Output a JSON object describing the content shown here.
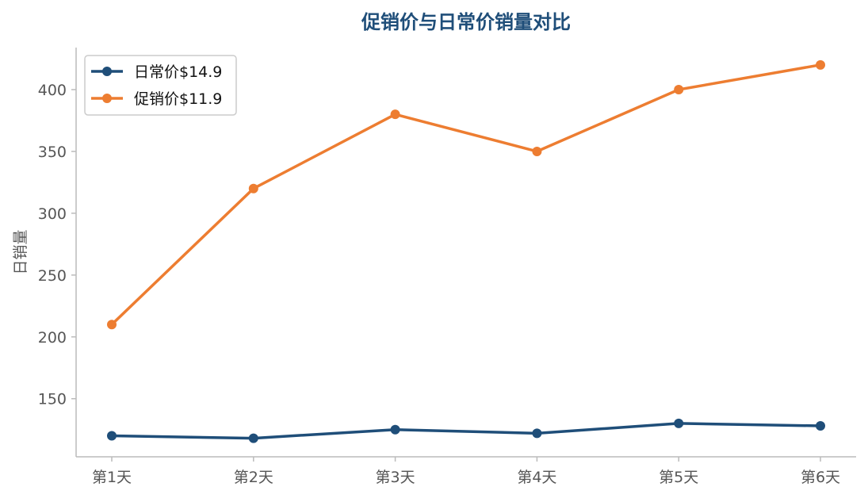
{
  "chart_data": {
    "type": "line",
    "title": "促销价与日常价销量对比",
    "xlabel": "",
    "ylabel": "日销量",
    "categories": [
      "第1天",
      "第2天",
      "第3天",
      "第4天",
      "第5天",
      "第6天"
    ],
    "ylim": [
      103,
      434
    ],
    "yticks": [
      150,
      200,
      250,
      300,
      350,
      400
    ],
    "grid": false,
    "legend_position": "top-left",
    "series": [
      {
        "name": "日常价$14.9",
        "color": "#1f4e79",
        "values": [
          120,
          118,
          125,
          122,
          130,
          128
        ]
      },
      {
        "name": "促销价$11.9",
        "color": "#ed7d31",
        "values": [
          210,
          320,
          380,
          350,
          400,
          420
        ]
      }
    ],
    "colors": {
      "title": "#1f4e79",
      "axis": "#bbbbbb",
      "tick_text": "#555555",
      "legend_border": "#cccccc"
    }
  }
}
